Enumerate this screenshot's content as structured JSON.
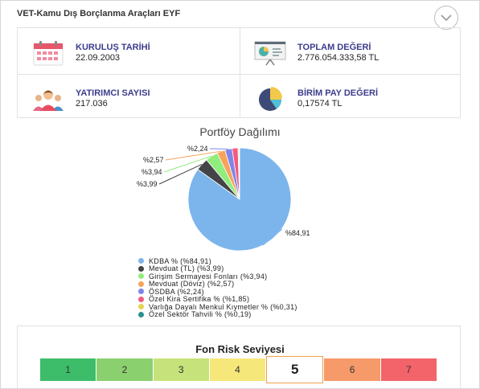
{
  "fund": {
    "title": "VET-Kamu Dış Borçlanma Araçları EYF"
  },
  "stats": {
    "founded": {
      "label": "KURULUŞ TARİHİ",
      "value": "22.09.2003",
      "icon": "calendar-icon"
    },
    "total_value": {
      "label": "TOPLAM DEĞERİ",
      "value": "2.776.054.333,58 TL",
      "icon": "presentation-chart-icon"
    },
    "investors": {
      "label": "YATIRIMCI SAYISI",
      "value": "217.036",
      "icon": "people-icon"
    },
    "unit_price": {
      "label": "BİRİM PAY DEĞERİ",
      "value": "0,17574 TL",
      "icon": "pie-chart-icon"
    }
  },
  "portfolio": {
    "title": "Portföy Dağılımı"
  },
  "chart_data": {
    "type": "pie",
    "title": "Portföy Dağılımı",
    "slices": [
      {
        "name": "KDBA % (%84,91)",
        "value": 84.91,
        "label": "%84,91",
        "color": "#7cb5ec"
      },
      {
        "name": "Mevduat (TL) (%3,99)",
        "value": 3.99,
        "label": "%3,99",
        "color": "#434348"
      },
      {
        "name": "Girişim Sermayesi Fonları (%3,94)",
        "value": 3.94,
        "label": "%3,94",
        "color": "#90ed7d"
      },
      {
        "name": "Mevduat (Döviz) (%2,57)",
        "value": 2.57,
        "label": "%2,57",
        "color": "#f7a35c"
      },
      {
        "name": "ÖSDBA (%2,24)",
        "value": 2.24,
        "label": "%2,24",
        "color": "#8085e9"
      },
      {
        "name": "Özel Kira Sertifika % (%1,85)",
        "value": 1.85,
        "label": "",
        "color": "#f15c80"
      },
      {
        "name": "Varlığa Dayalı Menkul Kıymetler % (%0,31)",
        "value": 0.31,
        "label": "",
        "color": "#e4d354"
      },
      {
        "name": "Özel Sektör Tahvili % (%0,19)",
        "value": 0.19,
        "label": "",
        "color": "#2b908f"
      }
    ],
    "legend": "bottom"
  },
  "risk": {
    "title": "Fon Risk Seviyesi",
    "levels": [
      "1",
      "2",
      "3",
      "4",
      "5",
      "6",
      "7"
    ],
    "colors": [
      "#3dbd6a",
      "#8bd06f",
      "#c6e27a",
      "#f6e77a",
      "#ffffff",
      "#f79a6a",
      "#f2646a"
    ],
    "selected": "5"
  }
}
